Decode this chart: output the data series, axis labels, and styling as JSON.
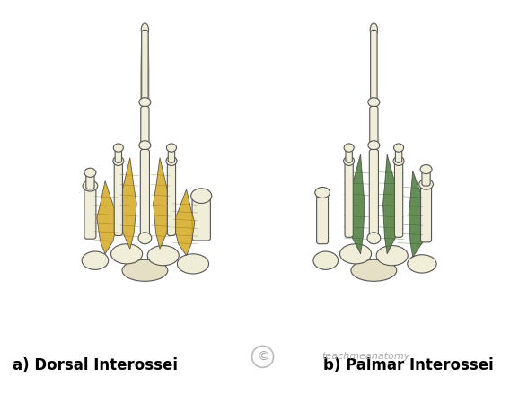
{
  "title": "",
  "background_color": "#ffffff",
  "label_left": "a) Dorsal Interossei",
  "label_right": "b) Palmar Interossei",
  "copyright_text": "teachmeanatomy",
  "figsize": [
    5.68,
    4.4
  ],
  "dpi": 100,
  "dorsal_muscle_color": "#D4A820",
  "palmar_muscle_color": "#4A7A3A",
  "bone_color": "#F0EDD8",
  "bone_outline": "#555555",
  "label_fontsize": 12,
  "copyright_fontsize": 8
}
